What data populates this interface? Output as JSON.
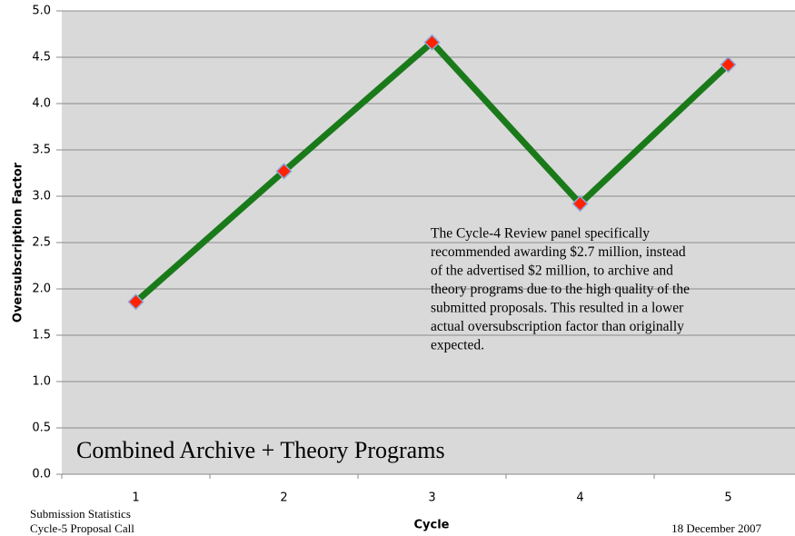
{
  "chart_data": {
    "type": "line",
    "categories": [
      "1",
      "2",
      "3",
      "4",
      "5"
    ],
    "series": [
      {
        "name": "Combined Archive + Theory Programs",
        "color": "#1a7a1a",
        "marker_color": "#ff2200",
        "values": [
          1.86,
          3.27,
          4.66,
          2.92,
          4.42
        ]
      }
    ],
    "ylim": [
      0,
      5
    ],
    "yticks": [
      {
        "value": 0,
        "label": "0.0"
      },
      {
        "value": 0.5,
        "label": "0.5"
      },
      {
        "value": 1,
        "label": "1.0"
      },
      {
        "value": 1.5,
        "label": "1.5"
      },
      {
        "value": 2,
        "label": "2.0"
      },
      {
        "value": 2.5,
        "label": "2.5"
      },
      {
        "value": 3,
        "label": "3.0"
      },
      {
        "value": 3.5,
        "label": "3.5"
      },
      {
        "value": 4,
        "label": "4.0"
      },
      {
        "value": 4.5,
        "label": "4.5"
      },
      {
        "value": 5,
        "label": "5.0"
      }
    ],
    "grid": true,
    "xlabel": "Cycle",
    "ylabel": "Oversubscription Factor",
    "inner_label": "Combined Archive + Theory Programs",
    "annotation": [
      "The Cycle-4 Review panel specifically",
      "recommended awarding $2.7 million, instead",
      "of the advertised $2 million, to archive and",
      "theory programs due to the high quality of the",
      "submitted proposals.  This resulted in a lower",
      "actual oversubscription factor than originally",
      "expected."
    ]
  },
  "footer": {
    "left": [
      "Submission Statistics",
      "Cycle-5 Proposal Call"
    ],
    "right": "18 December 2007"
  }
}
